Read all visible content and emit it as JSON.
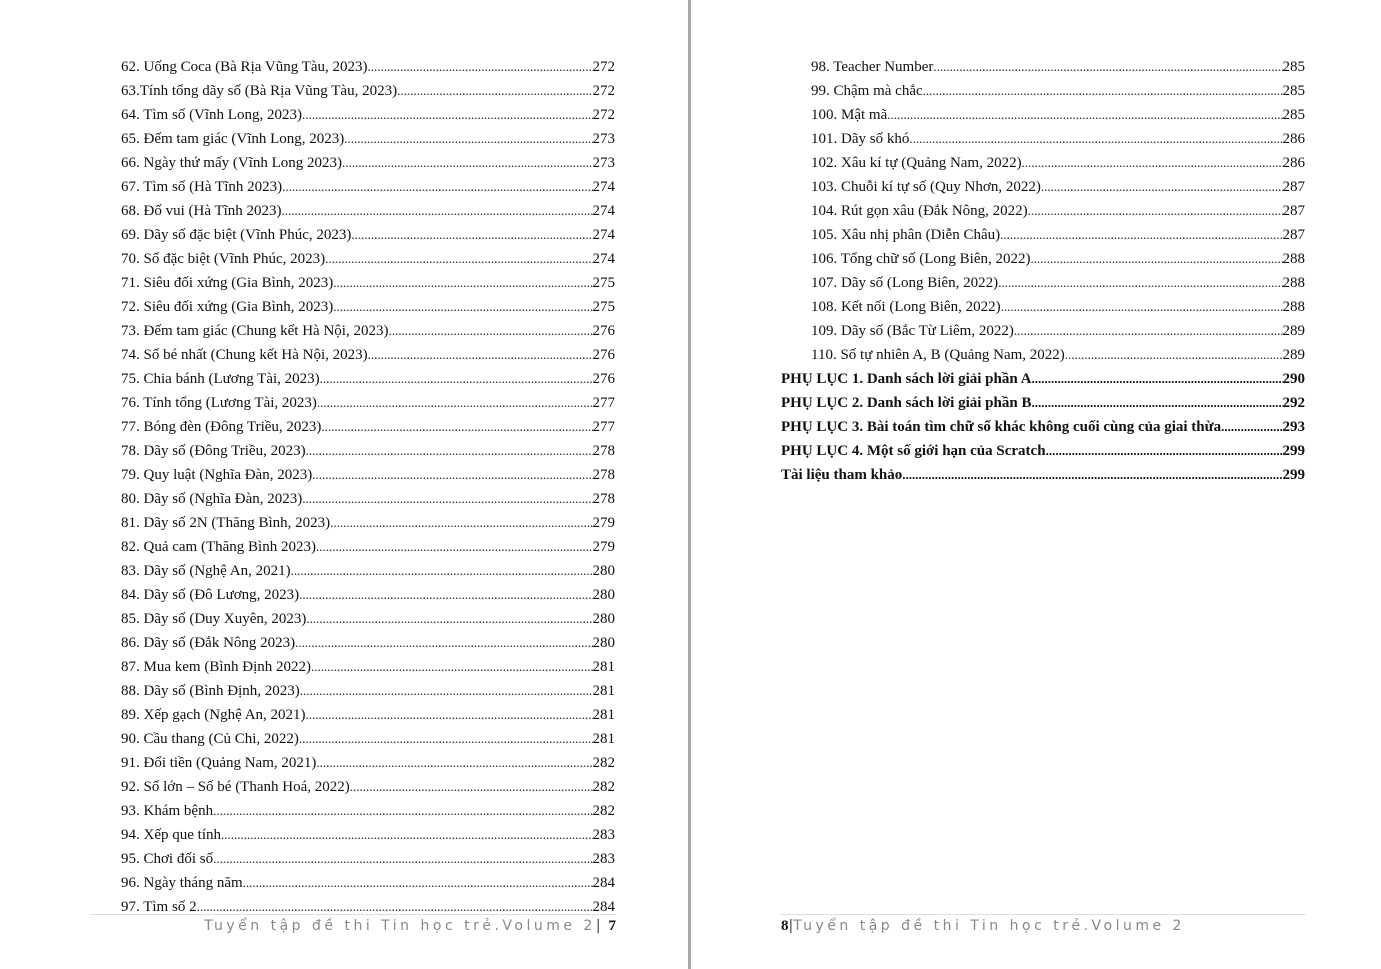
{
  "left_page": {
    "entries": [
      {
        "title": "62. Uống Coca (Bà Rịa Vũng Tàu, 2023)",
        "page": "272"
      },
      {
        "title": "63.Tính tổng dãy số (Bà Rịa Vũng Tàu, 2023)",
        "page": "272"
      },
      {
        "title": "64. Tìm số (Vĩnh Long, 2023)",
        "page": "272"
      },
      {
        "title": "65. Đếm tam giác (Vĩnh Long, 2023)",
        "page": "273"
      },
      {
        "title": "66. Ngày thứ mấy (Vĩnh Long 2023)",
        "page": "273"
      },
      {
        "title": "67. Tìm số (Hà Tĩnh 2023)",
        "page": "274"
      },
      {
        "title": "68. Đố vui (Hà Tĩnh 2023)",
        "page": "274"
      },
      {
        "title": "69. Dãy số đặc biệt (Vĩnh Phúc, 2023)",
        "page": "274"
      },
      {
        "title": "70. Số đặc biệt (Vĩnh Phúc, 2023)",
        "page": "274"
      },
      {
        "title": "71. Siêu đối xứng (Gia Bình, 2023)",
        "page": "275"
      },
      {
        "title": "72. Siêu đối xứng (Gia Bình, 2023)",
        "page": "275"
      },
      {
        "title": "73. Đếm tam giác (Chung kết Hà Nội, 2023)",
        "page": "276"
      },
      {
        "title": "74. Số bé nhất (Chung kết Hà Nội, 2023)",
        "page": "276"
      },
      {
        "title": "75. Chia bánh (Lương Tài, 2023)",
        "page": "276"
      },
      {
        "title": "76. Tính tổng (Lương Tài, 2023)",
        "page": "277"
      },
      {
        "title": "77. Bóng đèn (Đông Triều, 2023)",
        "page": "277"
      },
      {
        "title": "78. Dãy số (Đông Triều, 2023)",
        "page": "278"
      },
      {
        "title": "79. Quy luật (Nghĩa Đàn, 2023)",
        "page": "278"
      },
      {
        "title": "80. Dãy số (Nghĩa Đàn, 2023)",
        "page": "278"
      },
      {
        "title": "81. Dãy số 2N (Thăng Bình, 2023)",
        "page": "279"
      },
      {
        "title": "82. Quả cam (Thăng Bình 2023)",
        "page": "279"
      },
      {
        "title": "83. Dãy số (Nghệ An, 2021)",
        "page": "280"
      },
      {
        "title": "84. Dãy số (Đô Lương, 2023)",
        "page": "280"
      },
      {
        "title": "85. Dãy số (Duy Xuyên, 2023)",
        "page": "280"
      },
      {
        "title": "86. Dãy số (Đắk Nông 2023)",
        "page": "280"
      },
      {
        "title": "87. Mua kem (Bình Định 2022)",
        "page": "281"
      },
      {
        "title": "88. Dãy số (Bình Định, 2023)",
        "page": "281"
      },
      {
        "title": "89. Xếp gạch (Nghệ An, 2021)",
        "page": "281"
      },
      {
        "title": "90. Cầu thang (Củ Chi, 2022)",
        "page": "281"
      },
      {
        "title": "91. Đổi tiền (Quảng Nam, 2021)",
        "page": "282"
      },
      {
        "title": "92. Số lớn – Số bé (Thanh Hoá, 2022)",
        "page": "282"
      },
      {
        "title": "93. Khám bệnh",
        "page": "282"
      },
      {
        "title": "94. Xếp que tính",
        "page": "283"
      },
      {
        "title": "95. Chơi đối số",
        "page": "283"
      },
      {
        "title": "96. Ngày tháng năm",
        "page": "284"
      },
      {
        "title": "97. Tìm số 2",
        "page": "284"
      }
    ],
    "footer": {
      "text": "Tuyển tập đề thi Tin học trẻ.Volume 2",
      "separator": "|",
      "page_number": "7"
    }
  },
  "right_page": {
    "entries": [
      {
        "title": "98. Teacher Number",
        "page": "285"
      },
      {
        "title": "99. Chậm mà chắc",
        "page": "285"
      },
      {
        "title": "100. Mật mã",
        "page": "285"
      },
      {
        "title": "101. Dãy số khó",
        "page": "286"
      },
      {
        "title": "102. Xâu kí tự (Quảng Nam, 2022)",
        "page": "286"
      },
      {
        "title": "103. Chuỗi kí tự số (Quy Nhơn, 2022)",
        "page": "287"
      },
      {
        "title": "104. Rút gọn xâu (Đắk Nông, 2022)",
        "page": "287"
      },
      {
        "title": "105. Xâu nhị phân (Diễn Châu)",
        "page": "287"
      },
      {
        "title": "106. Tổng chữ số (Long Biên, 2022)",
        "page": "288"
      },
      {
        "title": "107. Dãy số (Long Biên, 2022)",
        "page": "288"
      },
      {
        "title": "108. Kết nối (Long Biên, 2022)",
        "page": "288"
      },
      {
        "title": "109. Dãy số (Bắc Từ Liêm, 2022)",
        "page": "289"
      },
      {
        "title": "110. Số tự nhiên A, B (Quảng Nam, 2022)",
        "page": "289"
      }
    ],
    "appendices": [
      {
        "title": "PHỤ LỤC 1. Danh sách lời giải  phần A",
        "page": "290"
      },
      {
        "title": "PHỤ LỤC 2. Danh sách lời giải phần B",
        "page": "292"
      },
      {
        "title": "PHỤ LỤC 3. Bài toán tìm chữ số khác không cuối cùng của giai thừa",
        "page": "293"
      },
      {
        "title": "PHỤ LỤC 4. Một số giới hạn của Scratch",
        "page": "299"
      },
      {
        "title": "Tài liệu tham khảo",
        "page": "299"
      }
    ],
    "footer": {
      "page_number": "8",
      "separator": "|",
      "text": "Tuyển tập đề thi Tin học trẻ.Volume 2"
    }
  }
}
